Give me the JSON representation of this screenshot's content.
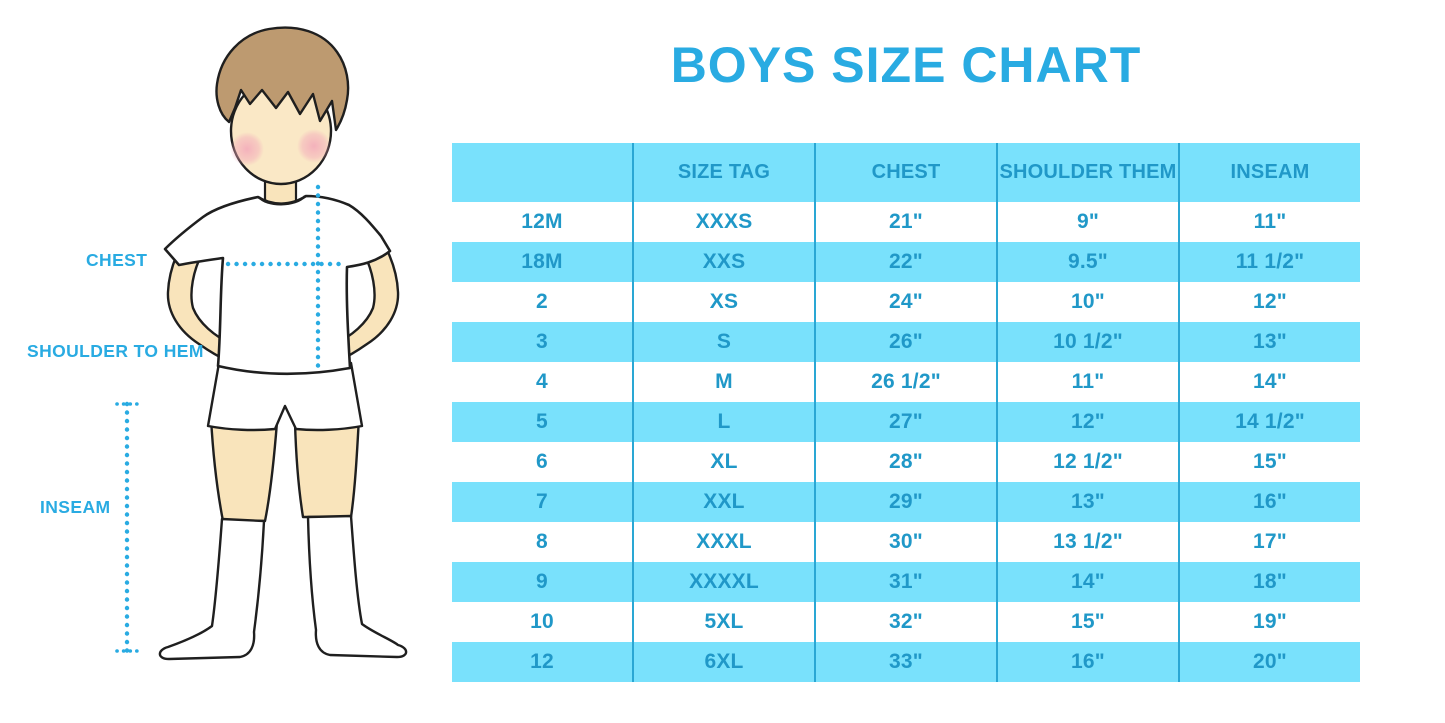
{
  "title": "BOYS SIZE CHART",
  "colors": {
    "accent": "#29ABE2",
    "table_text": "#2098C8",
    "row_band_bg": "#79E1FC",
    "row_white_bg": "#FFFFFF",
    "divider": "#2AA7D4",
    "skin": "#F9E4BB",
    "face": "#FAE8C6",
    "hair": "#BD9A70",
    "blush": "#F3A8BA",
    "outline": "#1F1F1F"
  },
  "figure": {
    "chest_label": "CHEST",
    "shoulder_label": "SHOULDER TO HEM",
    "inseam_label": "INSEAM"
  },
  "chart_data": {
    "type": "table",
    "title": "BOYS SIZE CHART",
    "columns": [
      "",
      "SIZE TAG",
      "CHEST",
      "SHOULDER THEM",
      "INSEAM"
    ],
    "rows": [
      [
        "12M",
        "XXXS",
        "21\"",
        "9\"",
        "11\""
      ],
      [
        "18M",
        "XXS",
        "22\"",
        "9.5\"",
        "11 1/2\""
      ],
      [
        "2",
        "XS",
        "24\"",
        "10\"",
        "12\""
      ],
      [
        "3",
        "S",
        "26\"",
        "10 1/2\"",
        "13\""
      ],
      [
        "4",
        "M",
        "26 1/2\"",
        "11\"",
        "14\""
      ],
      [
        "5",
        "L",
        "27\"",
        "12\"",
        "14 1/2\""
      ],
      [
        "6",
        "XL",
        "28\"",
        "12 1/2\"",
        "15\""
      ],
      [
        "7",
        "XXL",
        "29\"",
        "13\"",
        "16\""
      ],
      [
        "8",
        "XXXL",
        "30\"",
        "13 1/2\"",
        "17\""
      ],
      [
        "9",
        "XXXXL",
        "31\"",
        "14\"",
        "18\""
      ],
      [
        "10",
        "5XL",
        "32\"",
        "15\"",
        "19\""
      ],
      [
        "12",
        "6XL",
        "33\"",
        "16\"",
        "20\""
      ]
    ],
    "layout": {
      "header_band": true,
      "alternating_band_rows": "even rows white, odd rows light blue",
      "grid": "vertical dividers only",
      "legend": "none"
    }
  }
}
